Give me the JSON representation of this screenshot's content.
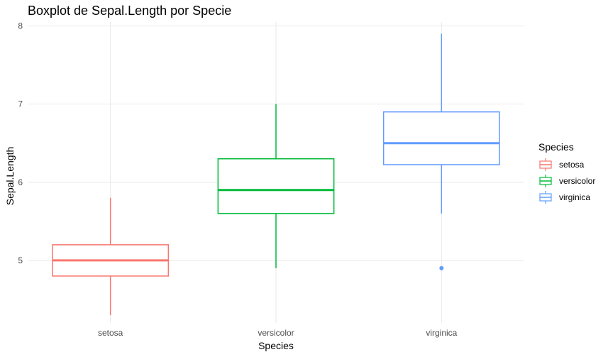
{
  "chart_data": {
    "type": "boxplot",
    "title": "Boxplot de Sepal.Length por Specie",
    "xlabel": "Species",
    "ylabel": "Sepal.Length",
    "categories": [
      "setosa",
      "versicolor",
      "virginica"
    ],
    "ylim": [
      4.2,
      8.05
    ],
    "yticks": [
      5,
      6,
      7,
      8
    ],
    "grid": true,
    "boxes": [
      {
        "category": "setosa",
        "whisker_low": 4.3,
        "q1": 4.8,
        "median": 5.0,
        "q3": 5.2,
        "whisker_high": 5.8,
        "outliers": [],
        "color": "#F8766D"
      },
      {
        "category": "versicolor",
        "whisker_low": 4.9,
        "q1": 5.6,
        "median": 5.9,
        "q3": 6.3,
        "whisker_high": 7.0,
        "outliers": [],
        "color": "#00BA38"
      },
      {
        "category": "virginica",
        "whisker_low": 5.6,
        "q1": 6.225,
        "median": 6.5,
        "q3": 6.9,
        "whisker_high": 7.9,
        "outliers": [
          4.9
        ],
        "color": "#619CFF"
      }
    ],
    "legend": {
      "title": "Species",
      "position": "right",
      "entries": [
        "setosa",
        "versicolor",
        "virginica"
      ]
    }
  }
}
